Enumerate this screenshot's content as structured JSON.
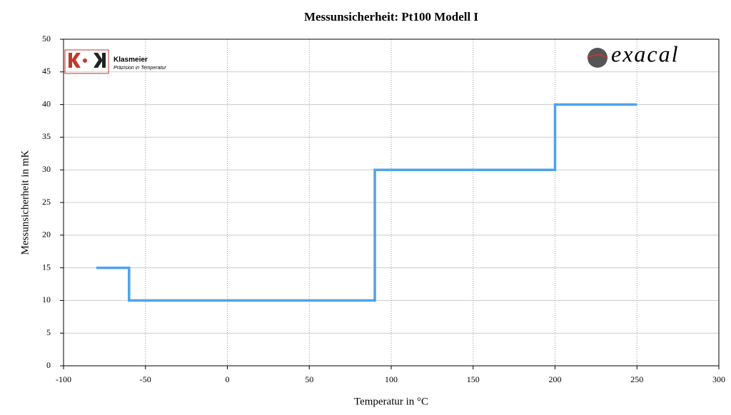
{
  "chart_data": {
    "type": "line",
    "title": "Messunsicherheit: Pt100 Modell I",
    "x_label": "Temperatur in °C",
    "y_label": "Messunsicherheit in mK",
    "x": [
      -80,
      -60,
      -60,
      90,
      90,
      200,
      200,
      250
    ],
    "series": [
      {
        "color": "#4da3ee",
        "values": [
          15,
          15,
          10,
          10,
          30,
          30,
          40,
          40
        ]
      }
    ],
    "xlim": [
      -100,
      300
    ],
    "xticks": [
      -100,
      -50,
      0,
      50,
      100,
      150,
      200,
      250,
      300
    ],
    "ylim": [
      0,
      50
    ],
    "yticks": [
      0,
      5,
      10,
      15,
      20,
      25,
      30,
      35,
      40,
      45,
      50
    ],
    "grid": true
  },
  "logos": {
    "left_name": "Klasmeier",
    "left_tagline": "Präzision in Temperatur",
    "right_name": "exacal"
  }
}
